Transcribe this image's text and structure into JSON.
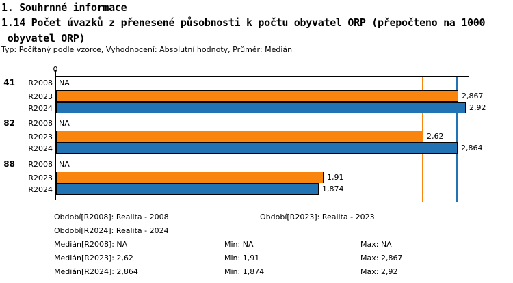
{
  "header": {
    "section_title": "1. Souhrnné informace",
    "indicator_title_line1": "1.14 Počet úvazků z přenesené působnosti k počtu obyvatel ORP (přepočteno na 1000",
    "indicator_title_line2": " obyvatel ORP)",
    "meta": "Typ: Počítaný podle vzorce, Vyhodnocení: Absolutní hodnoty, Průměr: Medián"
  },
  "colors": {
    "orange": "#F9840E",
    "blue": "#2173B4",
    "axis": "#000000"
  },
  "chart_data": {
    "type": "bar",
    "orientation": "horizontal",
    "axis_origin_label": "0",
    "xlim": [
      0,
      2.92
    ],
    "grid": false,
    "na_text": "NA",
    "series_names": [
      "R2008",
      "R2023",
      "R2024"
    ],
    "groups": [
      {
        "label": "41",
        "bars": [
          {
            "series": "R2008",
            "value": null,
            "display": "NA",
            "color": null
          },
          {
            "series": "R2023",
            "value": 2.867,
            "display": "2,867",
            "color": "orange"
          },
          {
            "series": "R2024",
            "value": 2.92,
            "display": "2,92",
            "color": "blue"
          }
        ]
      },
      {
        "label": "82",
        "bars": [
          {
            "series": "R2008",
            "value": null,
            "display": "NA",
            "color": null
          },
          {
            "series": "R2023",
            "value": 2.62,
            "display": "2,62",
            "color": "orange"
          },
          {
            "series": "R2024",
            "value": 2.864,
            "display": "2,864",
            "color": "blue"
          }
        ]
      },
      {
        "label": "88",
        "bars": [
          {
            "series": "R2008",
            "value": null,
            "display": "NA",
            "color": null
          },
          {
            "series": "R2023",
            "value": 1.91,
            "display": "1,91",
            "color": "orange"
          },
          {
            "series": "R2024",
            "value": 1.874,
            "display": "1,874",
            "color": "blue"
          }
        ]
      }
    ],
    "reference_lines": [
      {
        "name": "median-R2023",
        "value": 2.62,
        "color": "orange"
      },
      {
        "name": "median-R2024",
        "value": 2.864,
        "color": "blue"
      }
    ]
  },
  "legend": {
    "items": [
      {
        "text": "Období[R2008]: Realita - 2008",
        "row": 0,
        "col": "a"
      },
      {
        "text": "Období[R2023]: Realita - 2023",
        "row": 0,
        "col": "b"
      },
      {
        "text": "Období[R2024]: Realita - 2024",
        "row": 1,
        "col": "a"
      },
      {
        "text": "Medián[R2008]: NA",
        "row": 2,
        "col": "a"
      },
      {
        "text": "Min: NA",
        "row": 2,
        "col": "min"
      },
      {
        "text": "Max: NA",
        "row": 2,
        "col": "max"
      },
      {
        "text": "Medián[R2023]: 2,62",
        "row": 3,
        "col": "a"
      },
      {
        "text": "Min: 1,91",
        "row": 3,
        "col": "min"
      },
      {
        "text": "Max: 2,867",
        "row": 3,
        "col": "max"
      },
      {
        "text": "Medián[R2024]: 2,864",
        "row": 4,
        "col": "a"
      },
      {
        "text": "Min: 1,874",
        "row": 4,
        "col": "min"
      },
      {
        "text": "Max: 2,92",
        "row": 4,
        "col": "max"
      }
    ]
  }
}
